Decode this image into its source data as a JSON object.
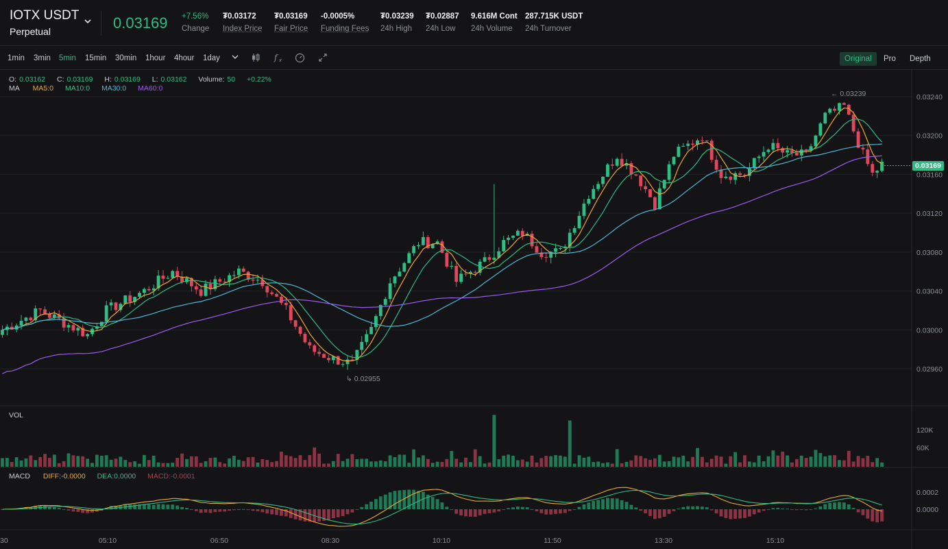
{
  "header": {
    "symbol": "IOTX USDT",
    "contract_type": "Perpetual",
    "last_price": "0.03169",
    "stats": [
      {
        "value": "+7.56%",
        "label": "Change",
        "color": "#2ebd85",
        "underline": false
      },
      {
        "value": "₮0.03172",
        "label": "Index Price",
        "underline": true
      },
      {
        "value": "₮0.03169",
        "label": "Fair Price",
        "underline": true
      },
      {
        "value": "-0.0005%",
        "label": "Funding Fees",
        "underline": true
      },
      {
        "value": "₮0.03239",
        "label": "24h High",
        "underline": false
      },
      {
        "value": "₮0.02887",
        "label": "24h Low",
        "underline": false
      },
      {
        "value": "9.616M Cont",
        "label": "24h Volume",
        "underline": false
      },
      {
        "value": "287.715K USDT",
        "label": "24h Turnover",
        "underline": false
      }
    ]
  },
  "toolbar": {
    "timeframes": [
      "1min",
      "3min",
      "5min",
      "15min",
      "30min",
      "1hour",
      "4hour",
      "1day"
    ],
    "active_timeframe": "5min",
    "views": [
      "Original",
      "Pro",
      "Depth"
    ],
    "active_view": "Original"
  },
  "ohlc_legend": {
    "o_label": "O:",
    "o": "0.03162",
    "c_label": "C:",
    "c": "0.03169",
    "h_label": "H:",
    "h": "0.03169",
    "l_label": "L:",
    "l": "0.03162",
    "vol_label": "Volume:",
    "vol": "50",
    "chg": "+0.22%"
  },
  "ma_legend": {
    "label": "MA",
    "ma5": "MA5:0",
    "ma10": "MA10:0",
    "ma30": "MA30:0",
    "ma60": "MA60:0"
  },
  "vol_legend": {
    "label": "VOL"
  },
  "macd_legend": {
    "label": "MACD",
    "diff": "DIFF:-0.0000",
    "dea": "DEA:0.0000",
    "macd": "MACD:-0.0001"
  },
  "current_price_tag": "0.03169",
  "colors": {
    "up": "#2ebd85",
    "down": "#e0465e",
    "ma5": "#f0a92e",
    "ma10": "#2ebd85",
    "ma30": "#4fb6d6",
    "ma60": "#9b5cf0"
  },
  "chart_data": {
    "type": "candlestick",
    "price_axis": {
      "ylim": [
        0.0293,
        0.0327
      ],
      "ticks": [
        "0.03240",
        "0.03200",
        "0.03160",
        "0.03120",
        "0.03080",
        "0.03040",
        "0.03000",
        "0.02960"
      ]
    },
    "volume_axis": {
      "ticks": [
        "120K",
        "60K"
      ]
    },
    "macd_axis": {
      "ticks": [
        "0.0002",
        "0.0000"
      ]
    },
    "time_ticks": [
      "30",
      "05:10",
      "06:50",
      "08:30",
      "10:10",
      "11:50",
      "13:30",
      "15:10"
    ],
    "annotations": {
      "high": "0.03239",
      "low": "0.02955"
    },
    "close_keypoints": [
      [
        0,
        0.03
      ],
      [
        8,
        0.0302
      ],
      [
        12,
        0.0301
      ],
      [
        18,
        0.02995
      ],
      [
        22,
        0.0302
      ],
      [
        30,
        0.0304
      ],
      [
        36,
        0.0306
      ],
      [
        42,
        0.0304
      ],
      [
        50,
        0.0306
      ],
      [
        55,
        0.0305
      ],
      [
        60,
        0.0302
      ],
      [
        65,
        0.0298
      ],
      [
        70,
        0.0297
      ],
      [
        74,
        0.02965
      ],
      [
        78,
        0.03
      ],
      [
        82,
        0.0305
      ],
      [
        88,
        0.0309
      ],
      [
        92,
        0.0309
      ],
      [
        96,
        0.0305
      ],
      [
        102,
        0.0307
      ],
      [
        106,
        0.0309
      ],
      [
        110,
        0.031
      ],
      [
        114,
        0.0308
      ],
      [
        118,
        0.0308
      ],
      [
        124,
        0.0314
      ],
      [
        130,
        0.0318
      ],
      [
        134,
        0.0316
      ],
      [
        138,
        0.0313
      ],
      [
        142,
        0.0318
      ],
      [
        148,
        0.032
      ],
      [
        152,
        0.0316
      ],
      [
        157,
        0.0316
      ],
      [
        162,
        0.0319
      ],
      [
        166,
        0.0318
      ],
      [
        170,
        0.0318
      ],
      [
        174,
        0.0322
      ],
      [
        178,
        0.0323
      ],
      [
        182,
        0.0318
      ],
      [
        184,
        0.0316
      ],
      [
        186,
        0.0317
      ]
    ],
    "volume_spikes": [
      [
        104,
        140000
      ],
      [
        120,
        125000
      ]
    ]
  }
}
